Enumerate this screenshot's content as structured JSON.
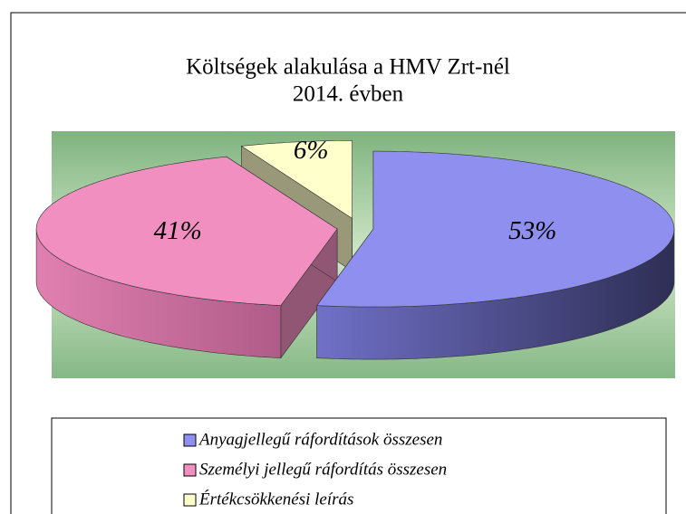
{
  "chart_data": {
    "type": "pie3d",
    "title": "Költségek alakulása a HMV Zrt-nél",
    "subtitle": "2014. évben",
    "categories": [
      "Anyagjellegű ráfordítások összesen",
      "Személyi jellegű ráfordítás összesen",
      "Értékcsökkenési leírás"
    ],
    "values": [
      53,
      41,
      6
    ],
    "value_labels": [
      "53%",
      "41%",
      "6%"
    ],
    "colors": [
      "#8f8ff0",
      "#f08fc0",
      "#ffffcc"
    ],
    "legend": "bottom"
  }
}
